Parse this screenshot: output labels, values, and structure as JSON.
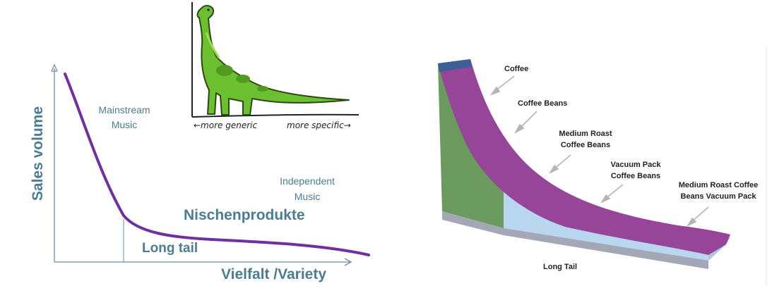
{
  "left_chart": {
    "y_label": "Sales volume",
    "x_label": "Vielfalt /Variety",
    "mainstream_label": "Mainstream Music",
    "independent_label": "Independent Music",
    "niche_label": "Nischenprodukte",
    "long_tail_label": "Long tail",
    "curve_color": "#7030a0",
    "text_color": "#4a7d93"
  },
  "cartoon": {
    "left_label": "←more generic",
    "right_label": "more specific→",
    "dino_color": "#66bb33"
  },
  "right_diagram": {
    "labels": [
      "Coffee",
      "Coffee Beans",
      "Medium Roast Coffee Beans",
      "Vacuum Pack Coffee Beans",
      "Medium Roast Coffee Beans Vacuum Pack"
    ],
    "title": "Long Tail",
    "head_color": "#6b9a5e",
    "tail_color": "#b9d6ef",
    "band_color": "#964599",
    "cap_color": "#3c5f97"
  }
}
